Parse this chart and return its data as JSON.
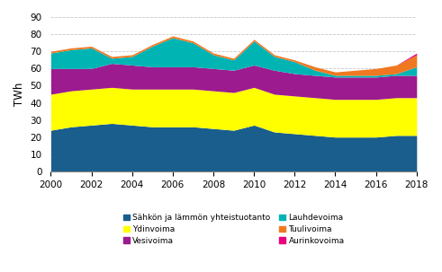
{
  "years": [
    2000,
    2001,
    2002,
    2003,
    2004,
    2005,
    2006,
    2007,
    2008,
    2009,
    2010,
    2011,
    2012,
    2013,
    2014,
    2015,
    2016,
    2017,
    2018
  ],
  "sahkon_lampoon": [
    24,
    26,
    27,
    28,
    27,
    26,
    26,
    26,
    25,
    24,
    27,
    23,
    22,
    21,
    20,
    20,
    20,
    21,
    21
  ],
  "ydinvoima": [
    21,
    21,
    21,
    21,
    21,
    22,
    22,
    22,
    22,
    22,
    22,
    22,
    22,
    22,
    22,
    22,
    22,
    22,
    22
  ],
  "vesivoima": [
    15,
    13,
    12,
    14,
    14,
    13,
    13,
    13,
    13,
    13,
    13,
    14,
    13,
    13,
    13,
    13,
    13,
    13,
    13
  ],
  "lauhdevoima": [
    9,
    11,
    12,
    3,
    5,
    12,
    17,
    14,
    8,
    6,
    14,
    8,
    7,
    3,
    1,
    1,
    1,
    1,
    5
  ],
  "tuulivoima": [
    1,
    1,
    1,
    1,
    1,
    1,
    1,
    1,
    1,
    1,
    1,
    1,
    1,
    2,
    2,
    3,
    4,
    5,
    7
  ],
  "aurinkovoima": [
    0,
    0,
    0,
    0,
    0,
    0,
    0,
    0,
    0,
    0,
    0,
    0,
    0,
    0,
    0,
    0,
    0,
    0,
    1
  ],
  "colors": {
    "sahkon_lampoon": "#1a5e8e",
    "ydinvoima": "#ffff00",
    "vesivoima": "#9c1b8e",
    "lauhdevoima": "#00b4b4",
    "tuulivoima": "#f07820",
    "aurinkovoima": "#e8007c"
  },
  "labels": {
    "sahkon_lampoon": "Sähkön ja lämmön yhteistuotanto",
    "ydinvoima": "Ydinvoima",
    "vesivoima": "Vesivoima",
    "lauhdevoima": "Lauhdevoima",
    "tuulivoima": "Tuulivoima",
    "aurinkovoima": "Aurinkovoima"
  },
  "ylabel": "TWh",
  "ylim": [
    0,
    90
  ],
  "yticks": [
    0,
    10,
    20,
    30,
    40,
    50,
    60,
    70,
    80,
    90
  ],
  "xlim": [
    2000,
    2018
  ],
  "xticks": [
    2000,
    2002,
    2004,
    2006,
    2008,
    2010,
    2012,
    2014,
    2016,
    2018
  ],
  "grid_color": "#c8c8c8",
  "background_color": "#ffffff"
}
